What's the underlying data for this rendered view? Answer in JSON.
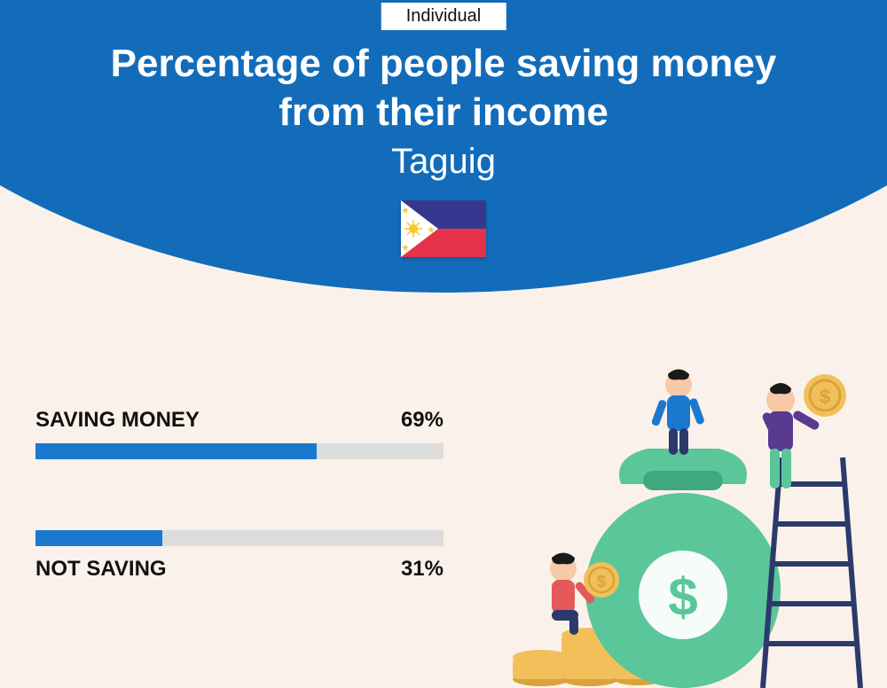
{
  "badge": "Individual",
  "title_line1": "Percentage of people saving money",
  "title_line2": "from their income",
  "location": "Taguig",
  "colors": {
    "header_bg": "#126cba",
    "page_bg": "#faf2ea",
    "bar_fill": "#1b78cf",
    "bar_track": "#dcdcdc",
    "text_dark": "#111111",
    "text_light": "#ffffff"
  },
  "flag": {
    "blue": "#36388f",
    "red": "#e4324b",
    "white": "#ffffff",
    "star": "#f8c92b"
  },
  "bars": [
    {
      "label": "SAVING MONEY",
      "value": 69,
      "display": "69%",
      "label_position": "top"
    },
    {
      "label": "NOT SAVING",
      "value": 31,
      "display": "31%",
      "label_position": "bottom"
    }
  ],
  "illustration": {
    "bag_color": "#5ac69a",
    "bag_dark": "#3fa87e",
    "coin_color": "#f2c05a",
    "coin_dark": "#d9a23a",
    "ladder_color": "#2b3a6b",
    "person1_shirt": "#1b78cf",
    "person1_pants": "#2b3a6b",
    "person2_shirt": "#5a3a8f",
    "person2_pants": "#5ac69a",
    "person3_shirt": "#e45a5a",
    "skin": "#f7c9a8",
    "hair": "#1a1a1a"
  }
}
